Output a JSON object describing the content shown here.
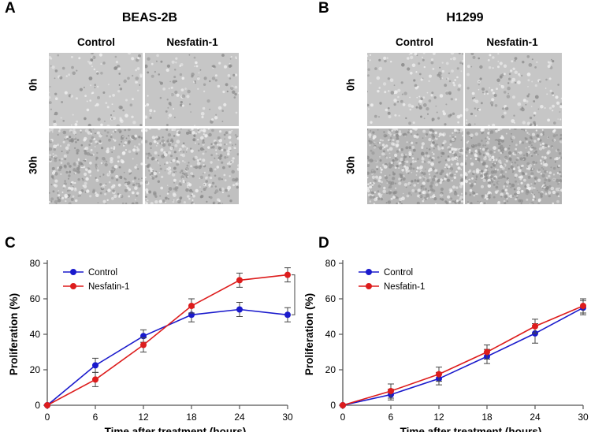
{
  "figure": {
    "panel_a": {
      "letter": "A",
      "title": "BEAS-2B",
      "columns": [
        "Control",
        "Nesfatin-1"
      ],
      "rows": [
        "0h",
        "30h"
      ]
    },
    "panel_b": {
      "letter": "B",
      "title": "H1299",
      "columns": [
        "Control",
        "Nesfatin-1"
      ],
      "rows": [
        "0h",
        "30h"
      ]
    },
    "panel_c": {
      "letter": "C",
      "significance": "*"
    },
    "panel_d": {
      "letter": "D"
    }
  },
  "colors": {
    "control": "#1a1acc",
    "nesfatin": "#dd1c1c",
    "axis": "#555555"
  },
  "chart_data": [
    {
      "id": "C",
      "type": "line",
      "x": [
        0,
        6,
        12,
        18,
        24,
        30
      ],
      "series": [
        {
          "name": "Control",
          "values": [
            0,
            22.5,
            39,
            51,
            54,
            51
          ],
          "errors": [
            0,
            4,
            3.5,
            4,
            4,
            4
          ]
        },
        {
          "name": "Nesfatin-1",
          "values": [
            0,
            14.5,
            34,
            56,
            70.5,
            73.5
          ],
          "errors": [
            0,
            4,
            4,
            4,
            4,
            4
          ]
        }
      ],
      "xlabel": "Time after treatment (hours)",
      "ylabel": "Proliferation (%)",
      "xlim": [
        0,
        30
      ],
      "ylim": [
        0,
        80
      ],
      "xticks": [
        "0",
        "6",
        "12",
        "18",
        "24",
        "30"
      ],
      "yticks": [
        "0",
        "20",
        "40",
        "60",
        "80"
      ],
      "legend": "top-left",
      "annotation": "*"
    },
    {
      "id": "D",
      "type": "line",
      "x": [
        0,
        6,
        12,
        18,
        24,
        30
      ],
      "series": [
        {
          "name": "Control",
          "values": [
            0,
            6,
            15,
            27.5,
            40.5,
            55
          ],
          "errors": [
            0,
            3,
            3.5,
            4,
            5.5,
            4
          ]
        },
        {
          "name": "Nesfatin-1",
          "values": [
            0,
            8,
            17.5,
            30,
            44.5,
            56
          ],
          "errors": [
            0,
            4,
            4,
            4,
            4,
            4
          ]
        }
      ],
      "xlabel": "Time after treatment (hours)",
      "ylabel": "Proliferation (%)",
      "xlim": [
        0,
        30
      ],
      "ylim": [
        0,
        80
      ],
      "xticks": [
        "0",
        "6",
        "12",
        "18",
        "24",
        "30"
      ],
      "yticks": [
        "0",
        "20",
        "40",
        "60",
        "80"
      ],
      "legend": "top-left"
    }
  ]
}
